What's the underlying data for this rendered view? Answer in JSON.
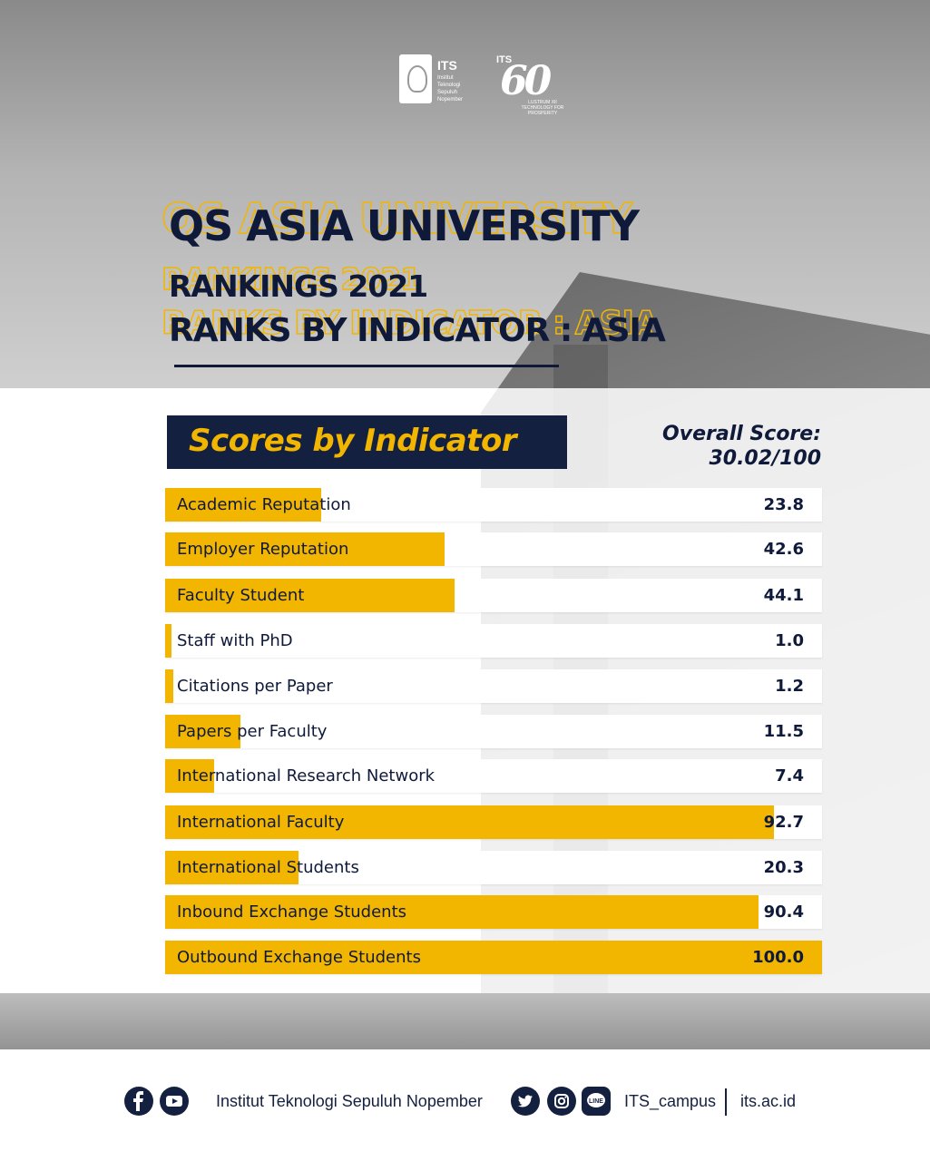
{
  "brand": {
    "its_logo_text": "ITS",
    "its_logo_sub": "Institut\nTeknologi\nSepuluh Nopember",
    "anniversary_its": "ITS",
    "anniversary_number": "60",
    "anniversary_sub": "LUSTRUM XII\nTECHNOLOGY FOR PROSPERITY"
  },
  "title": {
    "line1": "QS ASIA UNIVERSITY",
    "line2": "RANKINGS 2021",
    "line3": "RANKS BY INDICATOR : ASIA"
  },
  "scores_header": "Scores by Indicator",
  "overall": {
    "label": "Overall Score:",
    "value": "30.02/100"
  },
  "colors": {
    "accent": "#f2b500",
    "navy": "#14203f",
    "track": "#ffffff"
  },
  "chart_data": {
    "type": "bar",
    "orientation": "horizontal",
    "xlim": [
      0,
      100
    ],
    "categories": [
      "Academic Reputation",
      "Employer Reputation",
      "Faculty Student",
      "Staff with PhD",
      "Citations per Paper",
      "Papers per Faculty",
      "International Research Network",
      "International Faculty",
      "International Students",
      "Inbound Exchange Students",
      "Outbound Exchange Students"
    ],
    "values": [
      23.8,
      42.6,
      44.1,
      1.0,
      1.2,
      11.5,
      7.4,
      92.7,
      20.3,
      90.4,
      100.0
    ],
    "value_labels": [
      "23.8",
      "42.6",
      "44.1",
      "1.0",
      "1.2",
      "11.5",
      "7.4",
      "92.7",
      "20.3",
      "90.4",
      "100.0"
    ]
  },
  "footer": {
    "facebook_icon": "facebook-icon",
    "youtube_icon": "youtube-icon",
    "institution": "Institut Teknologi Sepuluh Nopember",
    "twitter_icon": "twitter-icon",
    "instagram_icon": "instagram-icon",
    "line_icon": "line-icon",
    "line_icon_text": "LINE",
    "handle": "ITS_campus",
    "website": "its.ac.id"
  }
}
